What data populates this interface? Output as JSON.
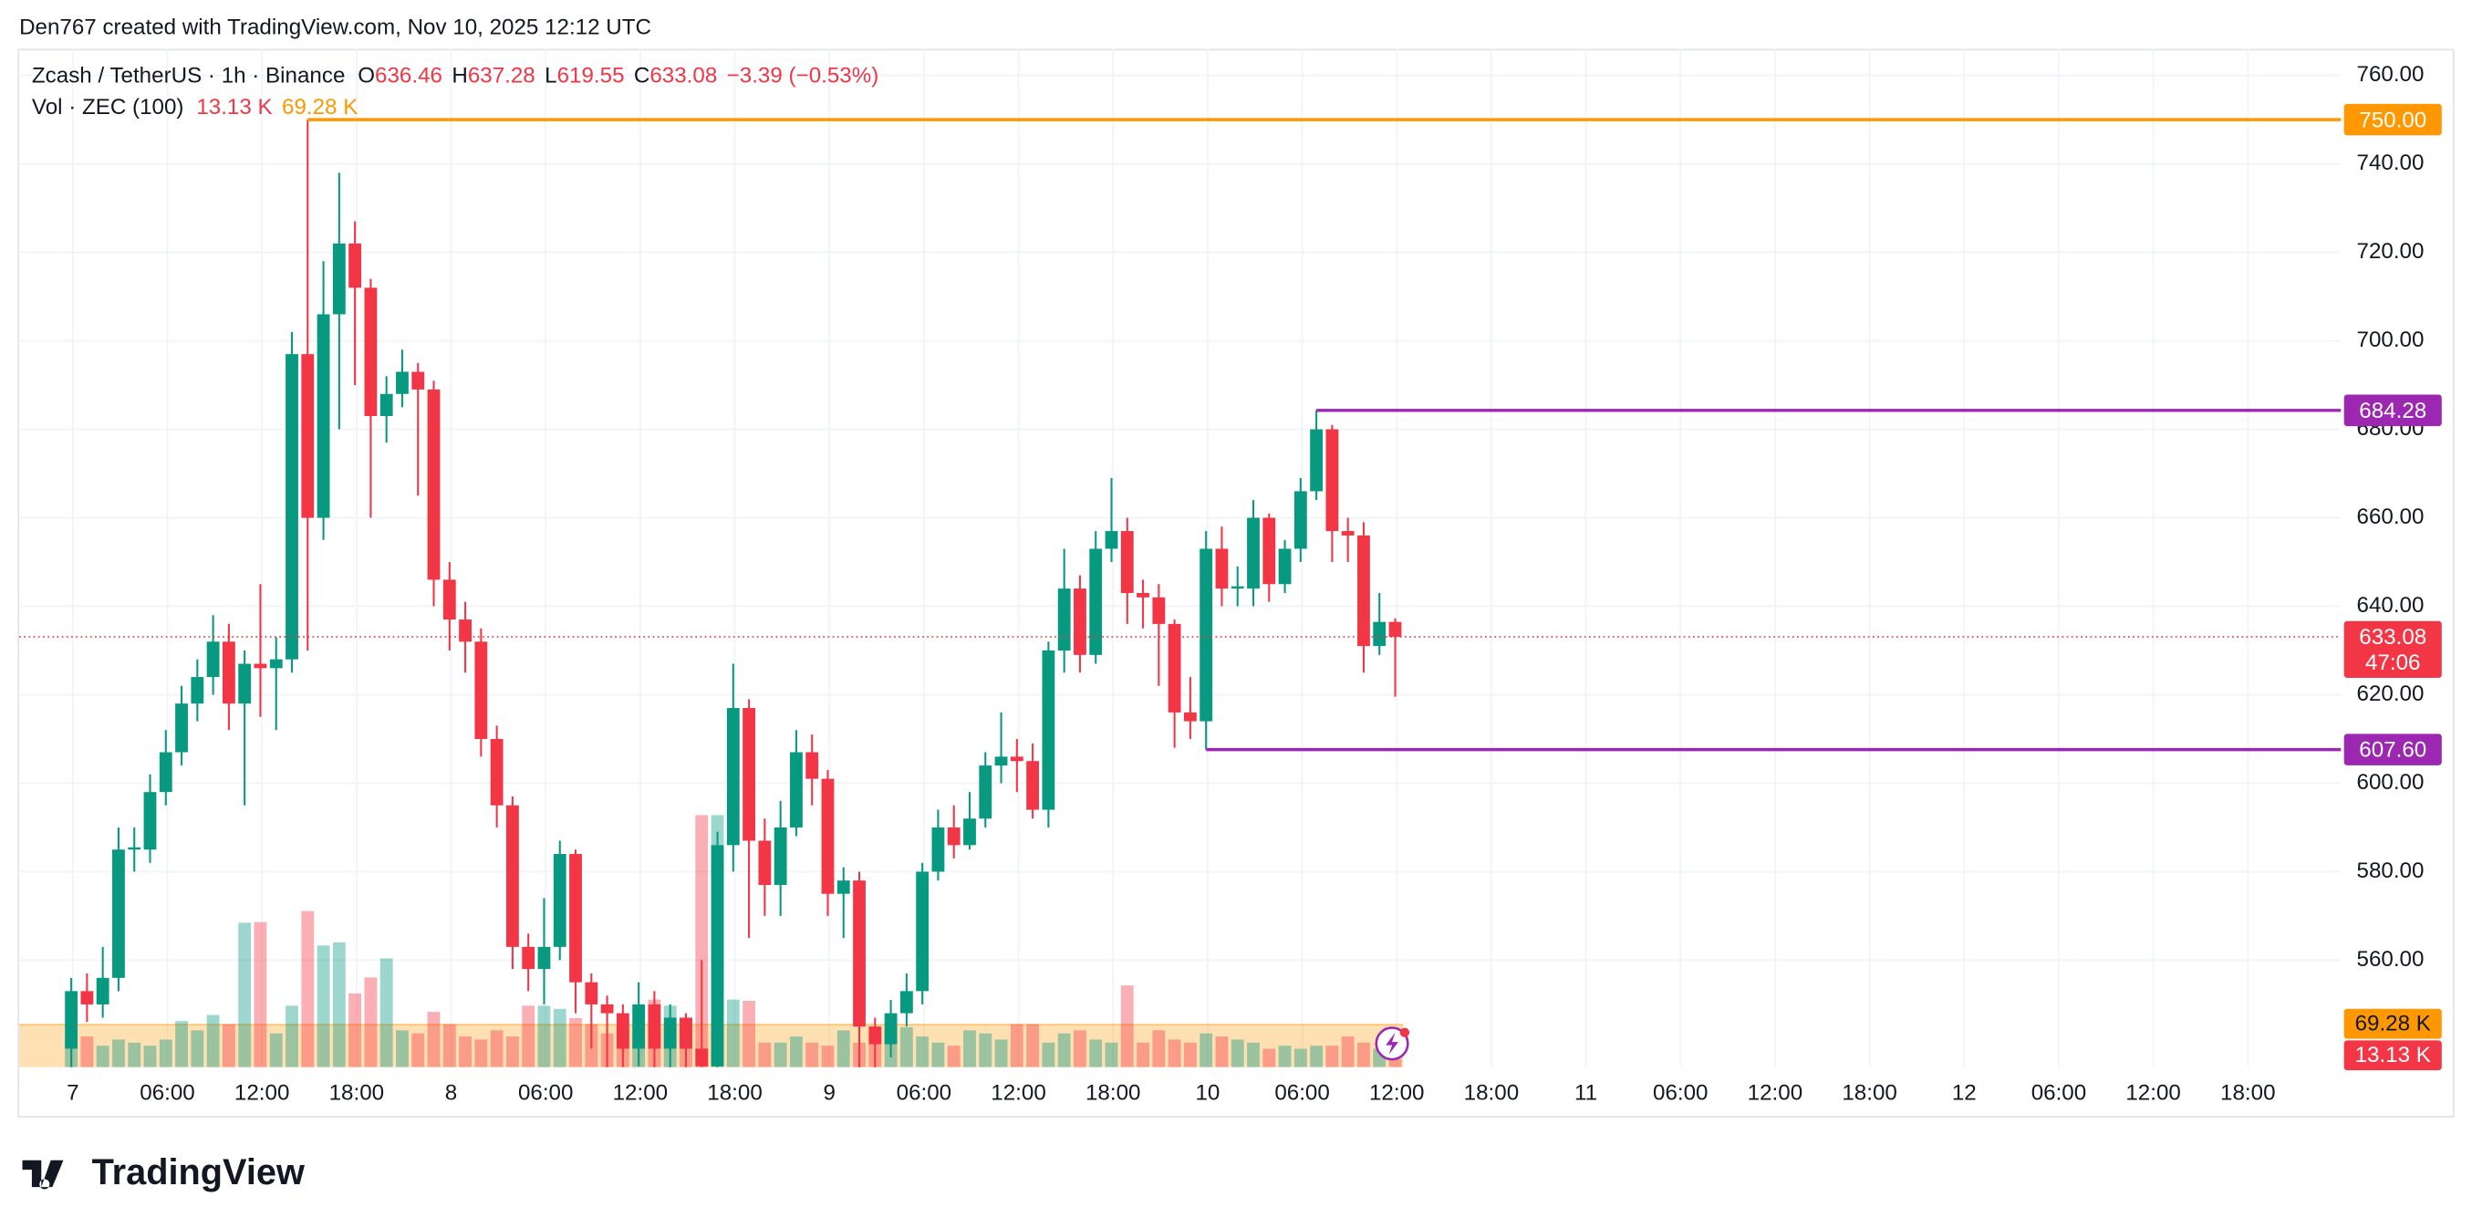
{
  "header": "Den767 created with TradingView.com, Nov 10, 2025 12:12 UTC",
  "chart_data": {
    "type": "candlestick",
    "title": "Zcash / TetherUS · 1h · Binance",
    "legend_keys": [
      "O",
      "H",
      "L",
      "C"
    ],
    "change_label": "−3.39 (−0.53%)",
    "countdown": "47:06",
    "up_color": "#089981",
    "down_color": "#f23645",
    "open": [
      540,
      553,
      550,
      556,
      585,
      585,
      598,
      607,
      618,
      624,
      632,
      618,
      627,
      626,
      628,
      697,
      660,
      706,
      722,
      712,
      683,
      688,
      693,
      689,
      646,
      637,
      632,
      610,
      595,
      563,
      558,
      563,
      584,
      555,
      550,
      548,
      540,
      550,
      540,
      547,
      540,
      536,
      586,
      617,
      587,
      577,
      590,
      607,
      601,
      575,
      578,
      545,
      541,
      548,
      553,
      580,
      590,
      586,
      592,
      604,
      606,
      605,
      594,
      630,
      644,
      629,
      653,
      657,
      643,
      642,
      636,
      616,
      614,
      653,
      644,
      644,
      660,
      645,
      653,
      666,
      680,
      657,
      656,
      631,
      636.46
    ],
    "high": [
      556,
      557,
      563,
      590,
      590,
      602,
      612,
      622,
      628,
      638,
      636,
      630,
      645,
      633,
      702,
      750,
      718,
      738,
      727,
      714,
      692,
      698,
      695,
      691,
      650,
      641,
      635,
      613,
      597,
      566,
      574,
      587,
      585,
      557,
      552,
      550,
      555,
      553,
      550,
      548,
      560,
      589,
      627,
      619,
      592,
      596,
      612,
      611,
      603,
      581,
      580,
      547,
      551,
      557,
      582,
      594,
      595,
      598,
      607,
      616,
      610,
      609,
      632,
      653,
      647,
      657,
      669,
      660,
      646,
      645,
      637,
      624,
      657,
      658,
      649,
      664,
      661,
      655,
      669,
      684.28,
      681,
      660,
      659,
      643,
      637.28
    ],
    "low": [
      535,
      546,
      547,
      553,
      580,
      582,
      595,
      604,
      614,
      620,
      612,
      595,
      615,
      612,
      625,
      630,
      655,
      680,
      690,
      660,
      677,
      685,
      665,
      640,
      630,
      625,
      606,
      590,
      558,
      553,
      550,
      560,
      548,
      540,
      535,
      532,
      536,
      534,
      532,
      530,
      530,
      532,
      580,
      565,
      570,
      570,
      588,
      595,
      570,
      565,
      535,
      532,
      538,
      545,
      550,
      578,
      583,
      585,
      590,
      600,
      598,
      592,
      590,
      625,
      625,
      627,
      650,
      636,
      635,
      622,
      608,
      610,
      607.6,
      640,
      640,
      640,
      641,
      643,
      650,
      664,
      650,
      650,
      625,
      629,
      619.55
    ],
    "close": [
      553,
      550,
      556,
      585,
      585.5,
      598,
      607,
      618,
      624,
      632,
      618,
      627,
      626,
      628,
      697,
      660,
      706,
      722,
      712,
      683,
      688,
      693,
      689,
      646,
      637,
      632,
      610,
      595,
      563,
      558,
      563,
      584,
      555,
      550,
      548,
      540,
      550,
      540,
      547,
      540,
      536,
      586,
      617,
      587,
      577,
      590,
      607,
      601,
      575,
      578,
      545,
      541,
      548,
      553,
      580,
      590,
      586,
      592,
      604,
      606,
      605,
      594,
      630,
      644,
      629,
      653,
      657,
      643,
      642,
      636,
      616,
      614,
      653,
      644,
      644.5,
      660,
      645,
      653,
      666,
      680,
      657,
      656,
      631,
      636.46,
      633.08
    ],
    "ylim": [
      535.8,
      766
    ],
    "yticks": [
      {
        "value": 560,
        "label": "560.00"
      },
      {
        "value": 580,
        "label": "580.00"
      },
      {
        "value": 600,
        "label": "600.00"
      },
      {
        "value": 620,
        "label": "620.00"
      },
      {
        "value": 640,
        "label": "640.00"
      },
      {
        "value": 660,
        "label": "660.00"
      },
      {
        "value": 680,
        "label": "680.00"
      },
      {
        "value": 700,
        "label": "700.00"
      },
      {
        "value": 720,
        "label": "720.00"
      },
      {
        "value": 740,
        "label": "740.00"
      },
      {
        "value": 760,
        "label": "760.00"
      }
    ],
    "xtick_labels": [
      "7",
      "06:00",
      "12:00",
      "18:00",
      "8",
      "06:00",
      "12:00",
      "18:00",
      "9",
      "06:00",
      "12:00",
      "18:00",
      "10",
      "06:00",
      "12:00",
      "18:00",
      "11",
      "06:00",
      "12:00",
      "18:00",
      "12",
      "06:00",
      "12:00",
      "18:00"
    ],
    "grid": true,
    "hlines": [
      {
        "value": 750,
        "label": "750.00",
        "color": "#ff9800"
      },
      {
        "value": 684.28,
        "label": "684.28",
        "color": "#9c27b0"
      },
      {
        "value": 607.6,
        "label": "607.60",
        "color": "#9c27b0"
      }
    ],
    "volume": {
      "name": "Vol · ZEC (100)",
      "values": [
        44,
        50,
        35,
        45,
        40,
        35,
        45,
        75,
        60,
        85,
        70,
        235,
        236,
        55,
        100,
        254,
        198,
        203,
        120,
        146,
        177,
        60,
        55,
        90,
        70,
        50,
        45,
        60,
        50,
        100,
        100,
        95,
        80,
        70,
        55,
        60,
        40,
        110,
        100,
        80,
        410,
        410,
        110,
        108,
        40,
        40,
        50,
        40,
        35,
        60,
        40,
        55,
        60,
        65,
        50,
        40,
        35,
        60,
        55,
        45,
        70,
        70,
        40,
        55,
        60,
        45,
        40,
        133,
        40,
        60,
        45,
        40,
        55,
        50,
        45,
        40,
        30,
        35,
        30,
        35,
        35,
        50,
        40,
        30,
        13.13
      ],
      "ylim": [
        0,
        400
      ],
      "last_label": "13.13 K",
      "ma": 69.28,
      "ma_label": "69.28 K",
      "ma_color": "#ff9800"
    }
  },
  "footer": "TradingView"
}
